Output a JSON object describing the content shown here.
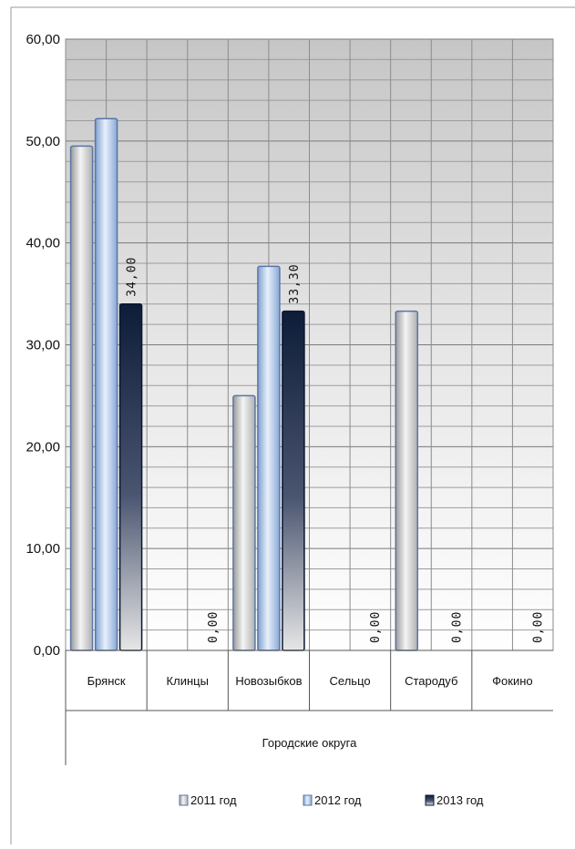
{
  "chart_data": {
    "type": "bar",
    "categories": [
      "Брянск",
      "Клинцы",
      "Новозыбков",
      "Сельцо",
      "Стародуб",
      "Фокино"
    ],
    "category_group_label": "Городские округа",
    "series": [
      {
        "name": "2011 год",
        "values": [
          49.5,
          0,
          25.0,
          0,
          33.3,
          0
        ],
        "color": "#d4d4d4"
      },
      {
        "name": "2012 год",
        "values": [
          52.2,
          0,
          37.7,
          0,
          0,
          0
        ],
        "color": "#a9c3e6"
      },
      {
        "name": "2013 год",
        "values": [
          34.0,
          0.0,
          33.3,
          0.0,
          0.0,
          0.0
        ],
        "color": "#1a2a48"
      }
    ],
    "data_labels": {
      "series": "2013 год",
      "texts": [
        "34,00",
        "0,00",
        "33,30",
        "0,00",
        "0,00",
        "0,00"
      ]
    },
    "y_ticks": [
      "0,00",
      "10,00",
      "20,00",
      "30,00",
      "40,00",
      "50,00",
      "60,00"
    ],
    "ylim": [
      0,
      60
    ],
    "grid": true,
    "legend_position": "bottom",
    "title": "",
    "xlabel": "",
    "ylabel": ""
  }
}
